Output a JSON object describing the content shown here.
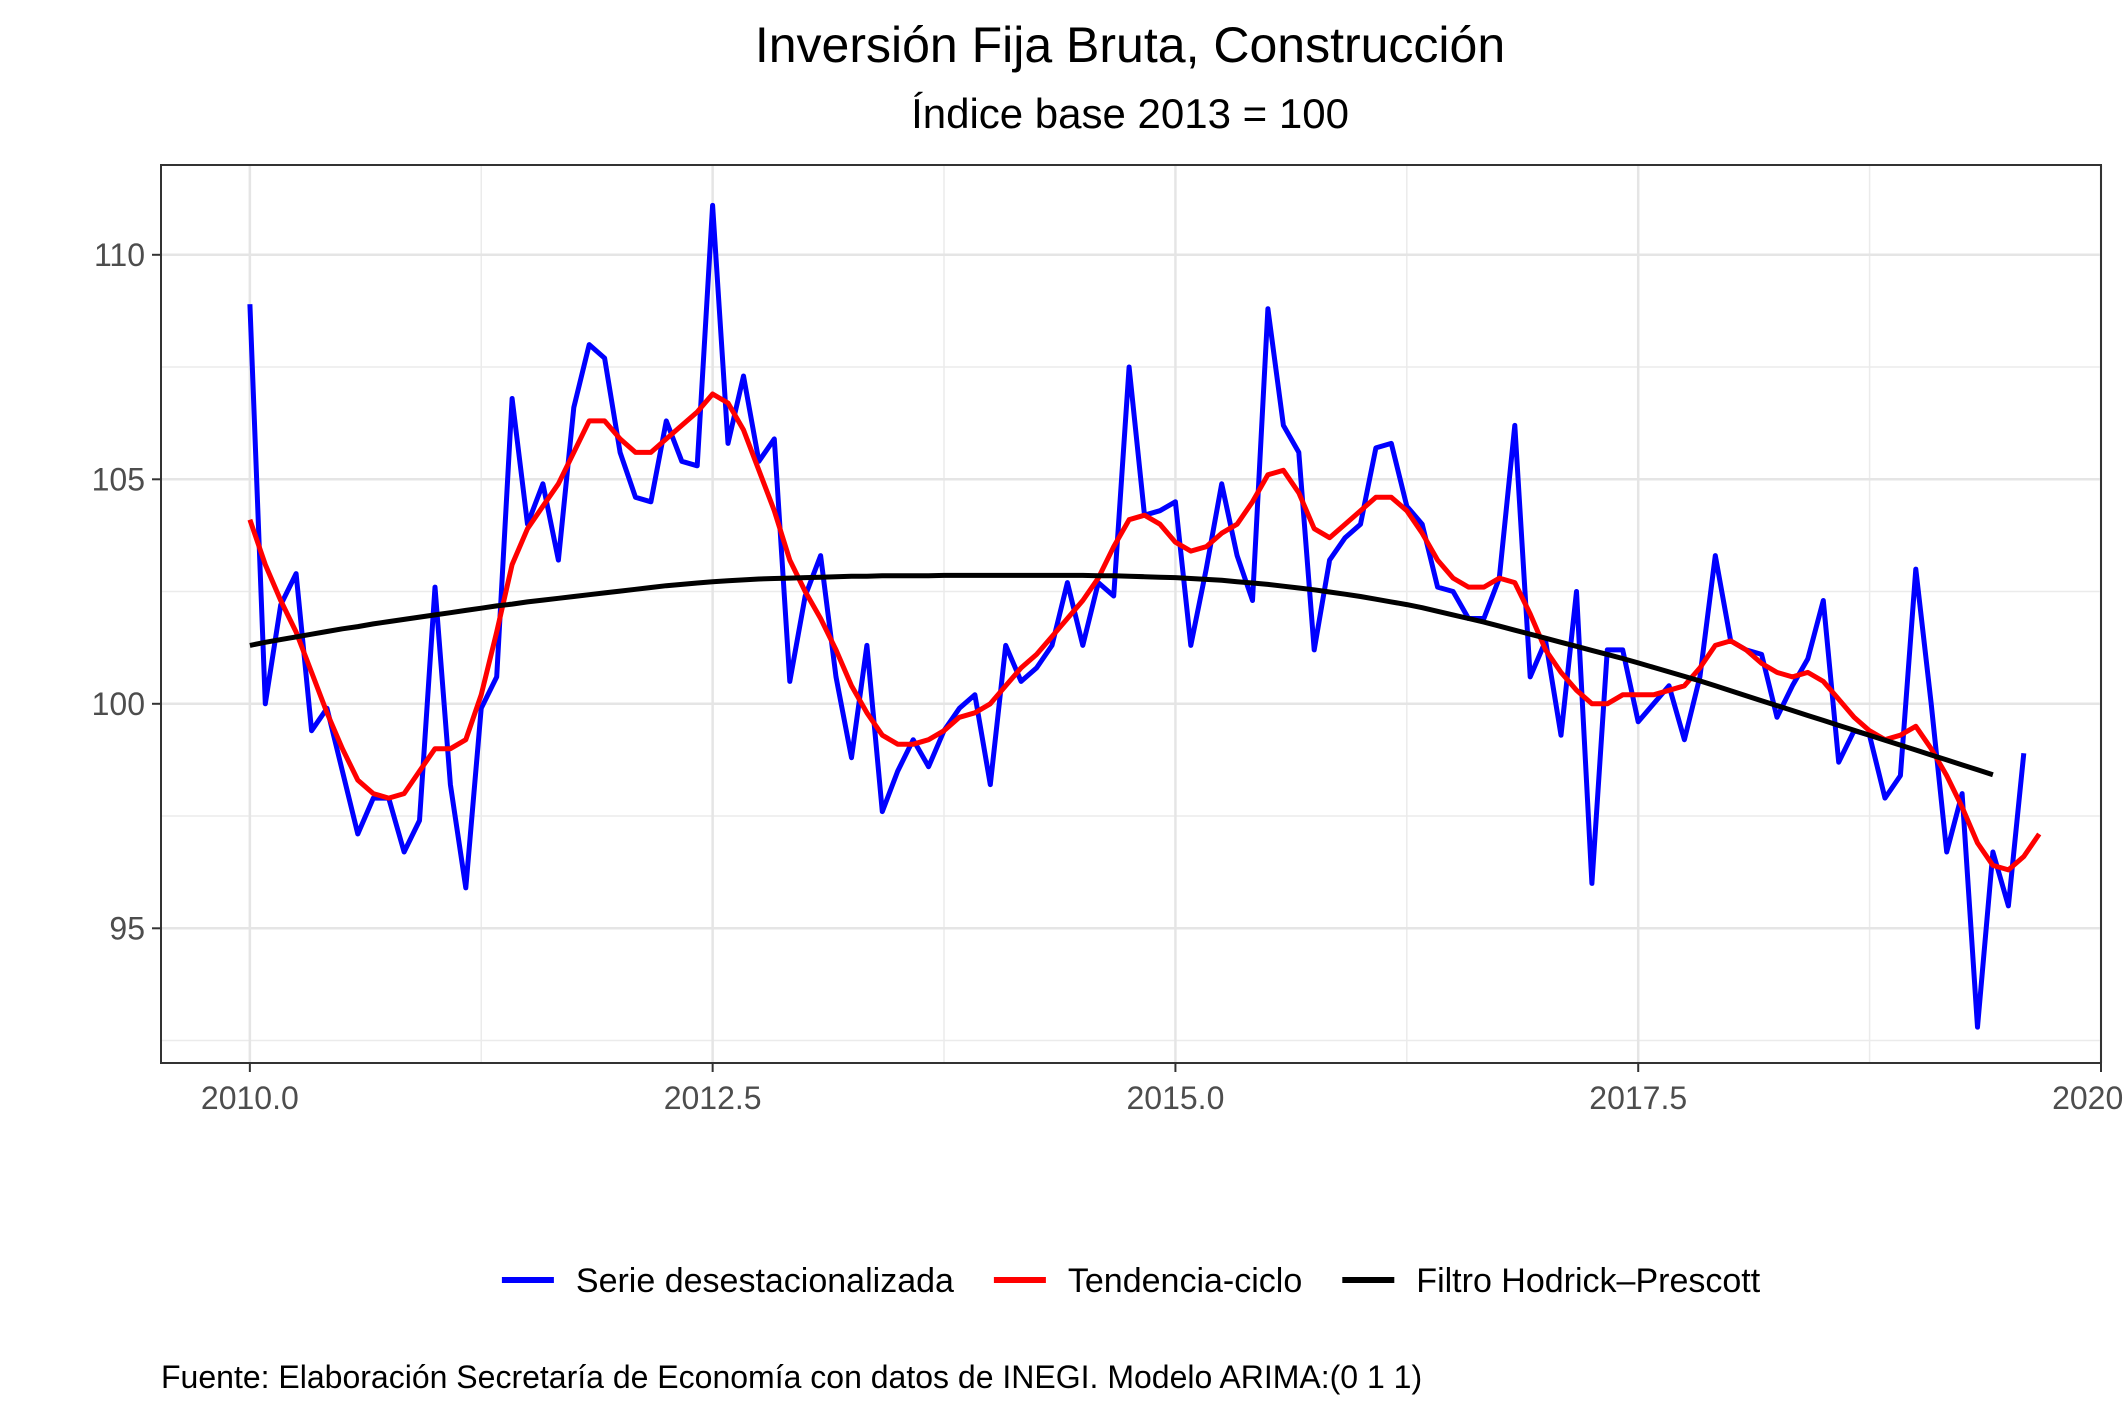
{
  "chart_data": {
    "type": "line",
    "title": "Inversión Fija Bruta, Construcción",
    "subtitle": "Índice base 2013 = 100",
    "caption": "Fuente: Elaboración Secretaría de Economía con datos de INEGI. Modelo ARIMA:(0 1 1)",
    "xlabel": "",
    "ylabel": "",
    "xlim": [
      2009.52,
      2020.0
    ],
    "ylim": [
      92.0,
      112.0
    ],
    "x_ticks": [
      2010.0,
      2012.5,
      2015.0,
      2017.5,
      2020.0
    ],
    "x_tick_labels": [
      "2010.0",
      "2012.5",
      "2015.0",
      "2017.5",
      "2020.0"
    ],
    "y_ticks": [
      95,
      100,
      105,
      110
    ],
    "y_tick_labels": [
      "95",
      "100",
      "105",
      "110"
    ],
    "grid": true,
    "legend_position": "bottom",
    "x_start": 2010.0,
    "x_step": 0.08333,
    "series": [
      {
        "name": "Serie desestacionalizada",
        "color": "#0000ff",
        "values": [
          108.9,
          100.0,
          102.2,
          102.9,
          99.4,
          99.9,
          98.5,
          97.1,
          97.9,
          97.9,
          96.7,
          97.4,
          102.6,
          98.2,
          95.9,
          99.9,
          100.6,
          106.8,
          104.0,
          104.9,
          103.2,
          106.6,
          108.0,
          107.7,
          105.6,
          104.6,
          104.5,
          106.3,
          105.4,
          105.3,
          111.1,
          105.8,
          107.3,
          105.4,
          105.9,
          100.5,
          102.4,
          103.3,
          100.6,
          98.8,
          101.3,
          97.6,
          98.5,
          99.2,
          98.6,
          99.4,
          99.9,
          100.2,
          98.2,
          101.3,
          100.5,
          100.8,
          101.3,
          102.7,
          101.3,
          102.7,
          102.4,
          107.5,
          104.2,
          104.3,
          104.5,
          101.3,
          103.0,
          104.9,
          103.3,
          102.3,
          108.8,
          106.2,
          105.6,
          101.2,
          103.2,
          103.7,
          104.0,
          105.7,
          105.8,
          104.4,
          104.0,
          102.6,
          102.5,
          101.9,
          101.9,
          102.8,
          106.2,
          100.6,
          101.4,
          99.3,
          102.5,
          96.0,
          101.2,
          101.2,
          99.6,
          100.0,
          100.4,
          99.2,
          100.6,
          103.3,
          101.4,
          101.2,
          101.1,
          99.7,
          100.4,
          101.0,
          102.3,
          98.7,
          99.4,
          99.3,
          97.9,
          98.4,
          103.0,
          100.0,
          96.7,
          98.0,
          92.8,
          96.7,
          95.5,
          98.9
        ]
      },
      {
        "name": "Tendencia-ciclo",
        "color": "#ff0000",
        "values": [
          104.1,
          103.1,
          102.3,
          101.6,
          100.7,
          99.8,
          99.0,
          98.3,
          98.0,
          97.9,
          98.0,
          98.5,
          99.0,
          99.0,
          99.2,
          100.2,
          101.6,
          103.1,
          103.9,
          104.4,
          104.9,
          105.6,
          106.3,
          106.3,
          105.9,
          105.6,
          105.6,
          105.9,
          106.2,
          106.5,
          106.9,
          106.7,
          106.1,
          105.2,
          104.3,
          103.2,
          102.5,
          101.9,
          101.2,
          100.4,
          99.8,
          99.3,
          99.1,
          99.1,
          99.2,
          99.4,
          99.7,
          99.8,
          100.0,
          100.4,
          100.8,
          101.1,
          101.5,
          101.9,
          102.3,
          102.8,
          103.5,
          104.1,
          104.2,
          104.0,
          103.6,
          103.4,
          103.5,
          103.8,
          104.0,
          104.5,
          105.1,
          105.2,
          104.7,
          103.9,
          103.7,
          104.0,
          104.3,
          104.6,
          104.6,
          104.3,
          103.8,
          103.2,
          102.8,
          102.6,
          102.6,
          102.8,
          102.7,
          102.0,
          101.2,
          100.7,
          100.3,
          100.0,
          100.0,
          100.2,
          100.2,
          100.2,
          100.3,
          100.4,
          100.8,
          101.3,
          101.4,
          101.2,
          100.9,
          100.7,
          100.6,
          100.7,
          100.5,
          100.1,
          99.7,
          99.4,
          99.2,
          99.3,
          99.5,
          99.0,
          98.4,
          97.7,
          96.9,
          96.4,
          96.3,
          96.6,
          97.1
        ]
      },
      {
        "name": "Filtro Hodrick–Prescott",
        "color": "#000000",
        "values": [
          101.3,
          101.37,
          101.43,
          101.49,
          101.55,
          101.61,
          101.67,
          101.72,
          101.78,
          101.83,
          101.88,
          101.93,
          101.98,
          102.03,
          102.08,
          102.13,
          102.18,
          102.22,
          102.27,
          102.31,
          102.35,
          102.39,
          102.43,
          102.47,
          102.51,
          102.55,
          102.59,
          102.63,
          102.66,
          102.69,
          102.72,
          102.74,
          102.76,
          102.78,
          102.79,
          102.8,
          102.81,
          102.82,
          102.83,
          102.84,
          102.84,
          102.85,
          102.85,
          102.85,
          102.85,
          102.86,
          102.86,
          102.86,
          102.86,
          102.86,
          102.86,
          102.86,
          102.86,
          102.86,
          102.86,
          102.85,
          102.85,
          102.84,
          102.83,
          102.82,
          102.81,
          102.79,
          102.77,
          102.75,
          102.72,
          102.69,
          102.66,
          102.62,
          102.58,
          102.54,
          102.49,
          102.44,
          102.39,
          102.33,
          102.27,
          102.21,
          102.14,
          102.06,
          101.98,
          101.9,
          101.82,
          101.73,
          101.64,
          101.55,
          101.46,
          101.37,
          101.28,
          101.19,
          101.1,
          101.01,
          100.91,
          100.81,
          100.71,
          100.61,
          100.51,
          100.4,
          100.29,
          100.18,
          100.07,
          99.96,
          99.85,
          99.74,
          99.63,
          99.52,
          99.41,
          99.3,
          99.19,
          99.08,
          98.97,
          98.86,
          98.75,
          98.64,
          98.53,
          98.42
        ]
      }
    ]
  }
}
